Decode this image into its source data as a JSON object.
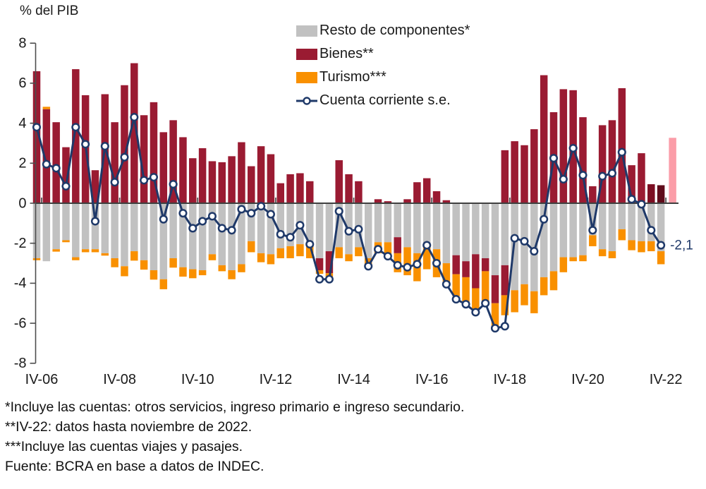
{
  "title": "% del PIB",
  "legend": {
    "items": [
      {
        "label": "Resto de componentes*",
        "type": "swatch",
        "color_key": "resto"
      },
      {
        "label": "Bienes**",
        "type": "swatch",
        "color_key": "bienes"
      },
      {
        "label": "Turismo***",
        "type": "swatch",
        "color_key": "turismo"
      },
      {
        "label": "Cuenta corriente s.e.",
        "type": "line",
        "color_key": "line"
      }
    ]
  },
  "footnotes": [
    "*Incluye las cuentas: otros servicios, ingreso primario e ingreso secundario.",
    "**IV-22: datos hasta noviembre de 2022.",
    "***Incluye las cuentas viajes y pasajes.",
    "Fuente: BCRA en base a datos de INDEC."
  ],
  "colors": {
    "resto": "#c1c1c1",
    "bienes": "#9a1b32",
    "bienes_dark_63": "#7c0e22",
    "bienes_dark_64": "#5f0c1b",
    "turismo": "#f99000",
    "line": "#1f3969",
    "marker_fill": "#ffffff",
    "highlight": "#fb9da8",
    "axis": "#4d4d4d",
    "text": "#1a1a1a"
  },
  "chart_data": {
    "type": "bar",
    "subtype": "stacked bars with line overlay",
    "title": "% del PIB",
    "frequency": "quarterly",
    "start_quarter": "IV-06",
    "end_quarter": "IV-22",
    "n_points": 65,
    "x_tick_labels": [
      "IV-06",
      "IV-08",
      "IV-10",
      "IV-12",
      "IV-14",
      "IV-16",
      "IV-18",
      "IV-20",
      "IV-22"
    ],
    "x_tick_indices": [
      0,
      8,
      16,
      24,
      32,
      40,
      48,
      56,
      64
    ],
    "y_tick_labels": [
      "8",
      "6",
      "4",
      "2",
      "0",
      "-2",
      "-4",
      "-6",
      "-8"
    ],
    "ylim": [
      -8,
      8
    ],
    "grid": false,
    "legend_position": "top-center",
    "series": [
      {
        "name": "Bienes** (positivo)",
        "values": [
          6.6,
          4.7,
          4.05,
          2.8,
          6.7,
          5.4,
          1.65,
          5.45,
          4.05,
          5.9,
          7.0,
          4.4,
          5.05,
          3.55,
          4.15,
          3.3,
          2.25,
          2.75,
          2.1,
          2.05,
          2.35,
          3.05,
          1.85,
          2.85,
          2.45,
          1.0,
          1.45,
          1.5,
          1.1,
          0,
          0,
          2.15,
          1.45,
          1.1,
          0,
          0.2,
          0.1,
          0,
          0.2,
          1.05,
          1.25,
          0.6,
          0.15,
          0,
          0,
          0,
          0,
          0,
          2.65,
          3.1,
          2.9,
          3.7,
          6.4,
          4.55,
          5.7,
          5.65,
          4.3,
          0.85,
          3.9,
          4.15,
          5.75,
          1.9,
          2.5,
          0.95,
          0.9
        ]
      },
      {
        "name": "Resto de componentes* (negativo)",
        "values": [
          -2.75,
          -2.9,
          -2.3,
          -1.85,
          -2.7,
          -2.3,
          -2.3,
          -2.5,
          -2.75,
          -3.15,
          -2.4,
          -2.85,
          -3.35,
          -3.8,
          -2.75,
          -3.2,
          -3.3,
          -3.35,
          -2.55,
          -3.1,
          -3.35,
          -3.05,
          -1.9,
          -2.5,
          -2.55,
          -2.25,
          -2.15,
          -2.05,
          -2.15,
          -2.75,
          -2.4,
          -2.2,
          -2.55,
          -2.2,
          -2.75,
          -1.95,
          -1.95,
          -1.7,
          -2.2,
          -2.5,
          -2.2,
          -2.3,
          -3.0,
          -2.6,
          -2.9,
          -2.55,
          -2.75,
          -3.6,
          -3.1,
          -4.35,
          -4.05,
          -4.4,
          -3.7,
          -3.4,
          -2.7,
          -2.7,
          -2.6,
          -1.6,
          -2.3,
          -2.4,
          -1.3,
          -1.85,
          -1.9,
          -1.9,
          -2.4
        ]
      },
      {
        "name": "Bienes** (negativo)",
        "values": [
          0,
          0,
          0,
          0,
          0,
          0,
          0,
          0,
          0,
          0,
          0,
          0,
          0,
          0,
          0,
          0,
          0,
          0,
          0,
          0,
          0,
          0,
          0,
          0,
          0,
          0,
          0,
          0,
          0,
          -0.6,
          -1.1,
          0,
          0,
          0,
          0,
          0,
          0,
          -0.8,
          0,
          0,
          0,
          0,
          0,
          -0.95,
          -0.8,
          -1.7,
          -0.65,
          -1.4,
          -1.5,
          0,
          0,
          0,
          0,
          0,
          0,
          0,
          0,
          0,
          0,
          0,
          0,
          0,
          0,
          0,
          0
        ]
      },
      {
        "name": "Turismo*** (negativo)",
        "values": [
          -0.1,
          0,
          -0.12,
          -0.1,
          -0.15,
          -0.15,
          -0.15,
          -0.12,
          -0.45,
          -0.5,
          -0.47,
          -0.47,
          -0.47,
          -0.5,
          -0.47,
          -0.47,
          -0.45,
          -0.25,
          -0.3,
          -0.3,
          -0.45,
          -0.4,
          -0.55,
          -0.45,
          -0.5,
          -0.5,
          -0.6,
          -0.6,
          -0.6,
          -0.18,
          -0.18,
          -0.55,
          -0.35,
          -0.45,
          -0.4,
          -0.55,
          -0.6,
          -0.95,
          -1.4,
          -1.4,
          -1.1,
          -1.4,
          -1.15,
          -1.1,
          -1.35,
          -1.1,
          -1.7,
          -1.3,
          -1.0,
          -1.1,
          -1.05,
          -1.1,
          -0.9,
          -0.95,
          -0.75,
          -0.2,
          -0.3,
          -0.55,
          -0.35,
          -0.35,
          -0.55,
          -0.5,
          -0.55,
          -0.5,
          -0.65
        ]
      },
      {
        "name": "Cuenta corriente s.e. (linea)",
        "values": [
          3.8,
          1.95,
          1.75,
          0.85,
          3.8,
          2.95,
          -0.9,
          2.85,
          1.05,
          2.3,
          4.3,
          1.15,
          1.3,
          -0.8,
          0.95,
          -0.5,
          -1.25,
          -0.9,
          -0.65,
          -1.25,
          -1.35,
          -0.3,
          -0.5,
          -0.15,
          -0.55,
          -1.55,
          -1.7,
          -1.1,
          -2.05,
          -3.8,
          -3.8,
          -0.4,
          -1.4,
          -1.3,
          -3.15,
          -2.3,
          -2.65,
          -3.1,
          -3.2,
          -3.05,
          -2.1,
          -3.0,
          -4.05,
          -4.8,
          -5.05,
          -5.45,
          -5.0,
          -6.25,
          -6.15,
          -1.75,
          -1.9,
          -2.4,
          -0.8,
          2.25,
          1.2,
          2.75,
          1.4,
          -1.35,
          1.35,
          1.5,
          2.55,
          0.2,
          -0.05,
          -1.35,
          -2.1
        ]
      }
    ],
    "turismo_pos": {
      "index": 1,
      "value": 0.12
    },
    "dark_bar_indices": [
      63,
      64
    ],
    "highlight_bar": {
      "value": 3.27,
      "note": "pink bar after IV-22"
    },
    "annotation": {
      "text": "-2,1",
      "value": -2.1,
      "at_index": 64
    }
  }
}
